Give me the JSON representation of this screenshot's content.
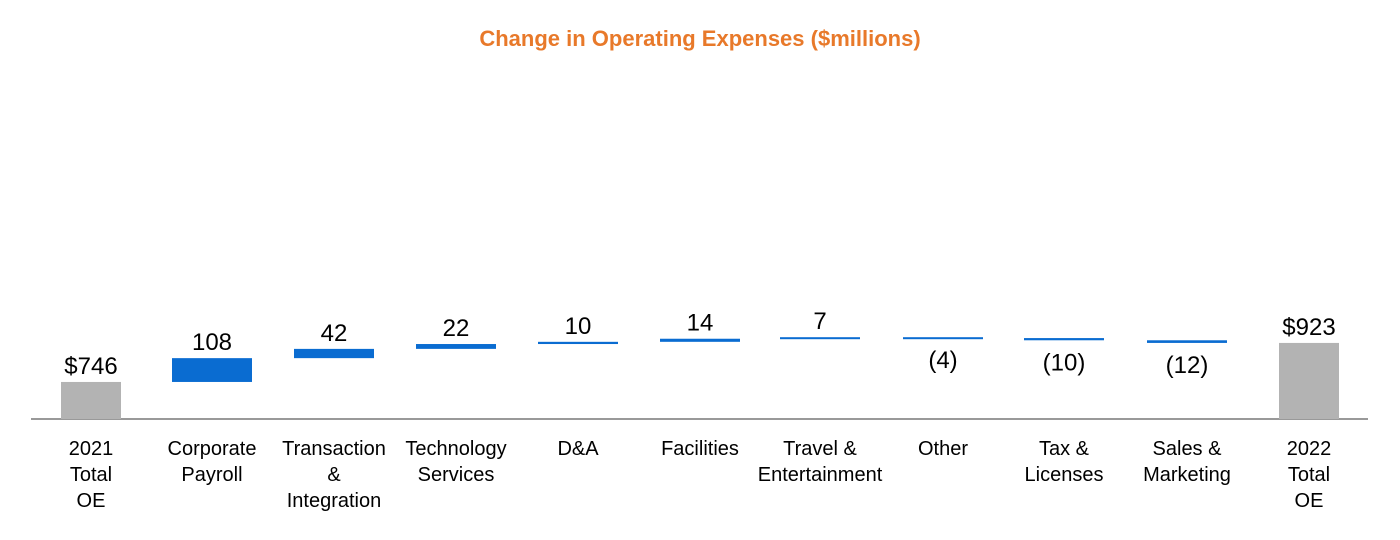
{
  "chart_data": {
    "type": "waterfall",
    "title": "Change in Operating Expenses ($millions)",
    "categories": [
      [
        "2021",
        "Total",
        "OE"
      ],
      [
        "Corporate",
        "Payroll"
      ],
      [
        "Transaction",
        "&",
        "Integration"
      ],
      [
        "Technology",
        "Services"
      ],
      [
        "D&A"
      ],
      [
        "Facilities"
      ],
      [
        "Travel &",
        "Entertainment"
      ],
      [
        "Other"
      ],
      [
        "Tax &",
        "Licenses"
      ],
      [
        "Sales &",
        "Marketing"
      ],
      [
        "2022",
        "Total",
        "OE"
      ]
    ],
    "values": [
      746,
      108,
      42,
      22,
      10,
      14,
      7,
      -4,
      -10,
      -12,
      923
    ],
    "kinds": [
      "total",
      "delta",
      "delta",
      "delta",
      "delta",
      "delta",
      "delta",
      "delta",
      "delta",
      "delta",
      "total"
    ],
    "value_labels": [
      "$746",
      "108",
      "42",
      "22",
      "10",
      "14",
      "7",
      "(4)",
      "(10)",
      "(12)",
      "$923"
    ],
    "colors": {
      "total": "#B3B3B3",
      "delta": "#0A6CD1",
      "axis": "#999999",
      "title": "#E8792A"
    }
  }
}
